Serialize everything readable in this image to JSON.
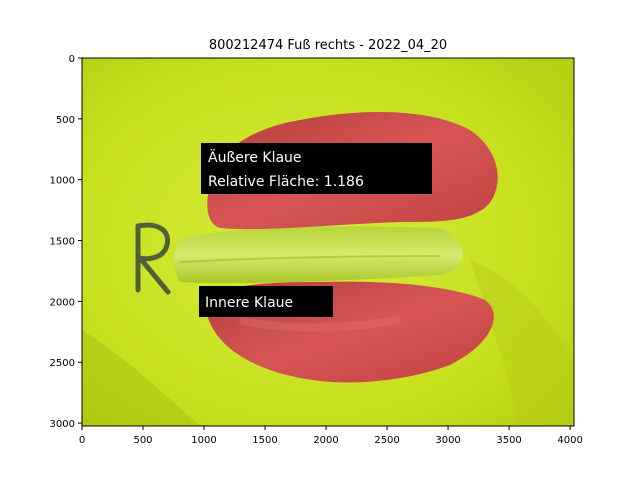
{
  "figure": {
    "title": "800212474 Fuß rechts - 2022_04_20"
  },
  "axes": {
    "x_ticks": [
      "0",
      "500",
      "1000",
      "1500",
      "2000",
      "2500",
      "3000",
      "3500",
      "4000"
    ],
    "y_ticks": [
      "0",
      "500",
      "1000",
      "1500",
      "2000",
      "2500",
      "3000"
    ]
  },
  "annotations": {
    "outer_claw_name": "Äußere Klaue",
    "outer_claw_area": "Relative Fläche: 1.186",
    "inner_claw_name": "Innere Klaue"
  },
  "colors": {
    "background_green": "#c9e21f",
    "claw_red": "#cc4a4a",
    "label_box": "#000000"
  }
}
